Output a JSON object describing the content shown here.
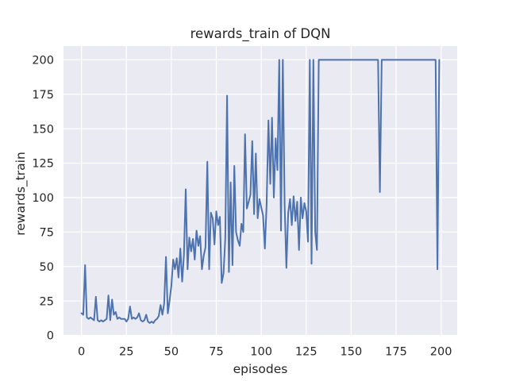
{
  "figure": {
    "background": "#ffffff"
  },
  "chart_data": {
    "type": "line",
    "title": "rewards_train of DQN",
    "xlabel": "episodes",
    "ylabel": "rewards_train",
    "x_ticks": [
      0,
      25,
      50,
      75,
      100,
      125,
      150,
      175,
      200
    ],
    "y_ticks": [
      0,
      25,
      50,
      75,
      100,
      125,
      150,
      175,
      200
    ],
    "xlim": [
      -10,
      209
    ],
    "ylim": [
      0,
      210
    ],
    "grid": true,
    "legend": false,
    "style": "seaborn-darkgrid",
    "plot_bg": "#eaeaf2",
    "grid_color": "#ffffff",
    "line_color": "#4c72b0",
    "text_color": "#262626",
    "series": [
      {
        "name": "rewards_train",
        "x_start": 0,
        "x_step": 1,
        "values": [
          16,
          15,
          51,
          13,
          12,
          13,
          12,
          11,
          28,
          11,
          10,
          11,
          10,
          11,
          12,
          29,
          11,
          26,
          15,
          17,
          12,
          13,
          12,
          12,
          12,
          10,
          12,
          21,
          12,
          13,
          12,
          13,
          16,
          11,
          10,
          11,
          15,
          10,
          9,
          10,
          9,
          11,
          12,
          14,
          22,
          15,
          23,
          57,
          16,
          25,
          36,
          55,
          48,
          56,
          42,
          63,
          39,
          58,
          106,
          48,
          71,
          61,
          70,
          55,
          76,
          65,
          72,
          48,
          58,
          64,
          126,
          48,
          89,
          85,
          66,
          90,
          80,
          86,
          38,
          45,
          70,
          174,
          46,
          111,
          51,
          123,
          75,
          69,
          65,
          81,
          75,
          146,
          92,
          97,
          102,
          141,
          88,
          132,
          85,
          99,
          93,
          87,
          63,
          95,
          156,
          110,
          158,
          100,
          143,
          120,
          200,
          76,
          200,
          95,
          49,
          89,
          99,
          80,
          101,
          83,
          97,
          62,
          100,
          85,
          96,
          90,
          68,
          200,
          52,
          200,
          75,
          62,
          200,
          200,
          200,
          200,
          200,
          200,
          200,
          200,
          200,
          200,
          200,
          200,
          200,
          200,
          200,
          200,
          200,
          200,
          200,
          200,
          200,
          200,
          200,
          200,
          200,
          200,
          200,
          200,
          200,
          200,
          200,
          200,
          200,
          200,
          104,
          200,
          200,
          200,
          200,
          200,
          200,
          200,
          200,
          200,
          200,
          200,
          200,
          200,
          200,
          200,
          200,
          200,
          200,
          200,
          200,
          200,
          200,
          200,
          200,
          200,
          200,
          200,
          200,
          200,
          200,
          200,
          48,
          200
        ]
      }
    ]
  }
}
